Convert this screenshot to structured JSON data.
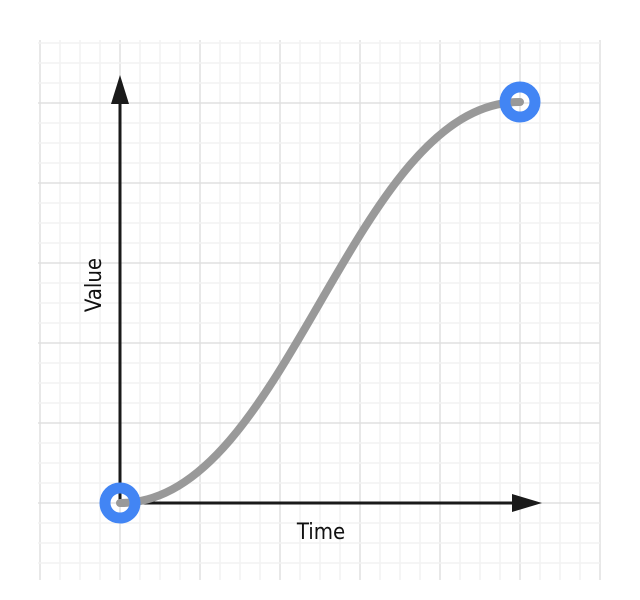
{
  "diagram": {
    "x_axis_label": "Time",
    "y_axis_label": "Value",
    "curve": {
      "type": "ease-in-out",
      "control_points": [
        0.42,
        0,
        0.58,
        1
      ]
    },
    "colors": {
      "curve": "#999999",
      "endpoint": "#4285f4",
      "axis": "#1a1a1a",
      "grid_major": "#e0e0e0",
      "grid_minor": "#f2f2f2"
    },
    "endpoints": [
      "start",
      "end"
    ]
  }
}
